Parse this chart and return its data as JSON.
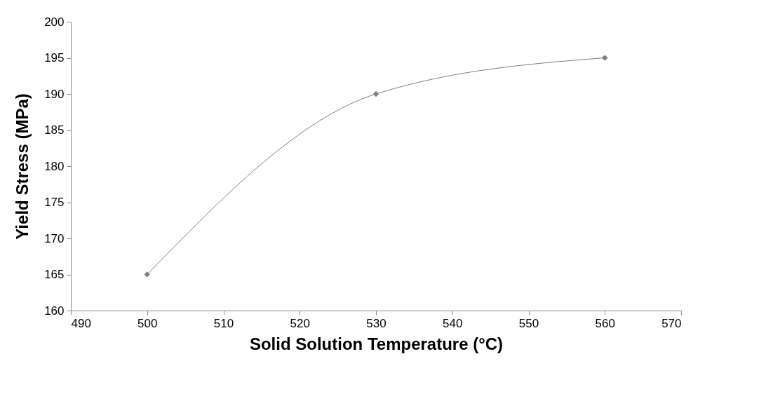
{
  "chart_data": {
    "type": "line",
    "xlabel": "Solid Solution Temperature (°C)",
    "ylabel": "Yield  Stress (MPa)",
    "x": [
      500,
      530,
      560
    ],
    "series": [
      {
        "color": "#7f7f7f",
        "values": [
          165,
          190,
          195
        ]
      }
    ],
    "xlim": [
      490,
      570
    ],
    "xticks": [
      490,
      500,
      510,
      520,
      530,
      540,
      550,
      560,
      570
    ],
    "ylim": [
      160,
      200
    ],
    "yticks": [
      160,
      165,
      170,
      175,
      180,
      185,
      190,
      195,
      200
    ],
    "grid": false,
    "legend": false,
    "marker": "diamond",
    "line_style": "solid"
  }
}
